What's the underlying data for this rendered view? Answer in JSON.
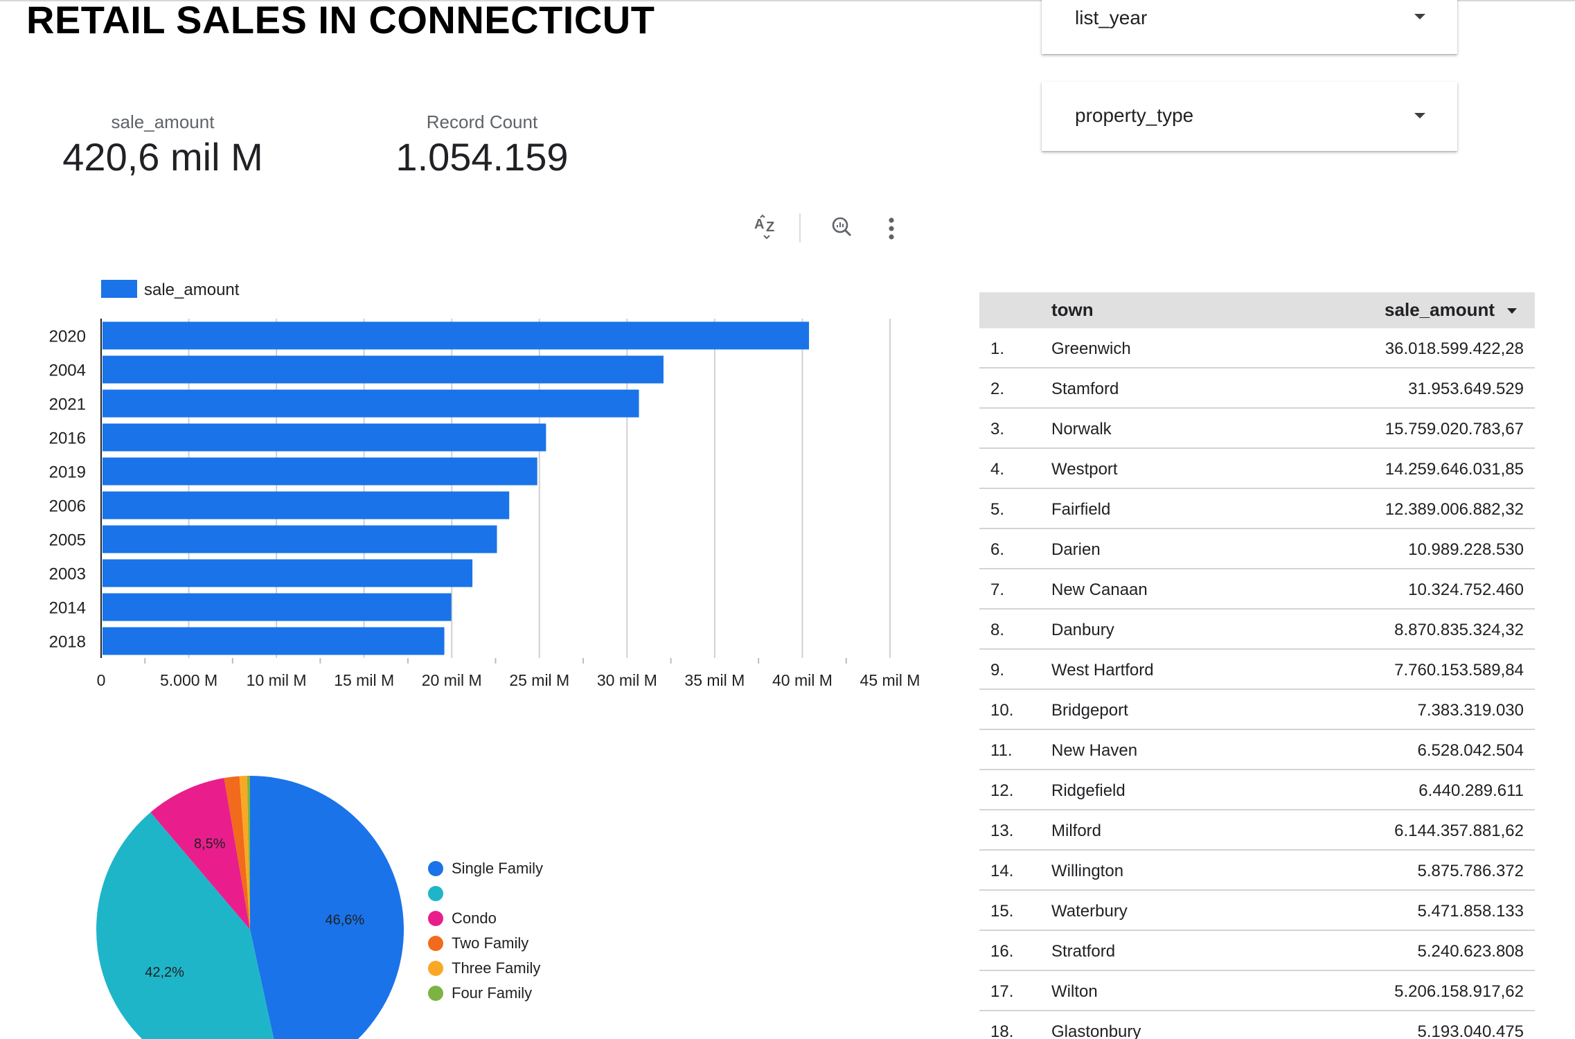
{
  "page": {
    "title": "RETAIL SALES IN CONNECTICUT"
  },
  "scorecards": {
    "sale_amount": {
      "label": "sale_amount",
      "value": "420,6 mil M"
    },
    "record_count": {
      "label": "Record Count",
      "value": "1.054.159"
    }
  },
  "filters": {
    "list_year": "list_year",
    "property_type": "property_type"
  },
  "toolbar": {
    "sort_icon": "sort-az-icon",
    "explore_icon": "explore-icon",
    "more_icon": "more-vert-icon"
  },
  "chart_data": [
    {
      "type": "bar",
      "orientation": "horizontal",
      "categories": [
        "2020",
        "2004",
        "2021",
        "2016",
        "2019",
        "2006",
        "2005",
        "2003",
        "2014",
        "2018"
      ],
      "series": [
        {
          "name": "sale_amount",
          "color": "#1a73e8",
          "values": [
            40.3,
            32.0,
            30.6,
            25.3,
            24.8,
            23.2,
            22.5,
            21.1,
            19.9,
            19.5
          ]
        }
      ],
      "value_unit": "mil M",
      "xlim": [
        0,
        45
      ],
      "x_ticks": [
        0,
        5,
        10,
        15,
        20,
        25,
        30,
        35,
        40,
        45
      ],
      "x_tick_labels": [
        "0",
        "5.000 M",
        "10 mil M",
        "15 mil M",
        "20 mil M",
        "25 mil M",
        "30 mil M",
        "35 mil M",
        "40 mil M",
        "45 mil M"
      ],
      "grid": true,
      "legend": "top-left"
    },
    {
      "type": "pie",
      "slices": [
        {
          "label": "Single Family",
          "value": 46.6,
          "color": "#1a73e8",
          "display": "46,6%"
        },
        {
          "label": "",
          "value": 42.2,
          "color": "#1fb5c9",
          "display": "42,2%"
        },
        {
          "label": "Condo",
          "value": 8.5,
          "color": "#e91e8c",
          "display": "8,5%"
        },
        {
          "label": "Two Family",
          "value": 1.6,
          "color": "#f26a1b",
          "display": ""
        },
        {
          "label": "Three Family",
          "value": 0.8,
          "color": "#f9a825",
          "display": ""
        },
        {
          "label": "Four Family",
          "value": 0.3,
          "color": "#7cb342",
          "display": ""
        }
      ],
      "legend": "right"
    }
  ],
  "table": {
    "columns": {
      "town": "town",
      "sale_amount": "sale_amount"
    },
    "sort_column": "sale_amount",
    "sort_direction": "descending",
    "rows": [
      {
        "idx": "1.",
        "town": "Greenwich",
        "sale_amount": "36.018.599.422,28"
      },
      {
        "idx": "2.",
        "town": "Stamford",
        "sale_amount": "31.953.649.529"
      },
      {
        "idx": "3.",
        "town": "Norwalk",
        "sale_amount": "15.759.020.783,67"
      },
      {
        "idx": "4.",
        "town": "Westport",
        "sale_amount": "14.259.646.031,85"
      },
      {
        "idx": "5.",
        "town": "Fairfield",
        "sale_amount": "12.389.006.882,32"
      },
      {
        "idx": "6.",
        "town": "Darien",
        "sale_amount": "10.989.228.530"
      },
      {
        "idx": "7.",
        "town": "New Canaan",
        "sale_amount": "10.324.752.460"
      },
      {
        "idx": "8.",
        "town": "Danbury",
        "sale_amount": "8.870.835.324,32"
      },
      {
        "idx": "9.",
        "town": "West Hartford",
        "sale_amount": "7.760.153.589,84"
      },
      {
        "idx": "10.",
        "town": "Bridgeport",
        "sale_amount": "7.383.319.030"
      },
      {
        "idx": "11.",
        "town": "New Haven",
        "sale_amount": "6.528.042.504"
      },
      {
        "idx": "12.",
        "town": "Ridgefield",
        "sale_amount": "6.440.289.611"
      },
      {
        "idx": "13.",
        "town": "Milford",
        "sale_amount": "6.144.357.881,62"
      },
      {
        "idx": "14.",
        "town": "Willington",
        "sale_amount": "5.875.786.372"
      },
      {
        "idx": "15.",
        "town": "Waterbury",
        "sale_amount": "5.471.858.133"
      },
      {
        "idx": "16.",
        "town": "Stratford",
        "sale_amount": "5.240.623.808"
      },
      {
        "idx": "17.",
        "town": "Wilton",
        "sale_amount": "5.206.158.917,62"
      },
      {
        "idx": "18.",
        "town": "Glastonbury",
        "sale_amount": "5.193.040.475"
      }
    ]
  }
}
